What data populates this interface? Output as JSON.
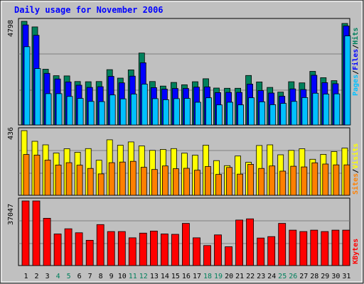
{
  "colors": {
    "background": "#ffffff",
    "frame": "#c0c0c0",
    "plot_bg": "#c0c0c0",
    "grid": "#808080",
    "title": "#0000ff",
    "hits": "#00805c",
    "files": "#0000ff",
    "pages": "#00c0ff",
    "visits": "#ffff00",
    "sites": "#ff8000",
    "kbytes": "#ff0000",
    "weekday_text": "#000000",
    "weekend_text": "#00805c"
  },
  "chart_data": [
    {
      "type": "bar",
      "title": "Daily usage for November 2006",
      "legend": [
        "Pages",
        "Files",
        "Hits"
      ],
      "y_max_label": "4798",
      "ylim": [
        0,
        4798
      ],
      "grid": true,
      "categories": [
        "1",
        "2",
        "3",
        "4",
        "5",
        "6",
        "7",
        "8",
        "9",
        "10",
        "11",
        "12",
        "13",
        "14",
        "15",
        "16",
        "17",
        "18",
        "19",
        "20",
        "21",
        "22",
        "23",
        "24",
        "25",
        "26",
        "27",
        "28",
        "29",
        "30",
        "31"
      ],
      "weekend_days": [
        "4",
        "5",
        "11",
        "12",
        "18",
        "19",
        "25",
        "26"
      ],
      "series": [
        {
          "name": "Hits",
          "values": [
            4850,
            4540,
            2580,
            2280,
            2270,
            2010,
            2000,
            2010,
            2560,
            2170,
            2550,
            3330,
            2010,
            1800,
            1970,
            1860,
            2000,
            2140,
            1710,
            1700,
            1700,
            2290,
            1990,
            1740,
            1520,
            2000,
            1950,
            2480,
            2190,
            2050,
            4700
          ]
        },
        {
          "name": "Files",
          "values": [
            4630,
            4150,
            2390,
            2130,
            1990,
            1840,
            1740,
            1770,
            2250,
            1950,
            2260,
            2880,
            1730,
            1660,
            1690,
            1690,
            1750,
            1760,
            1500,
            1510,
            1510,
            1890,
            1590,
            1480,
            1330,
            1670,
            1640,
            2300,
            1960,
            1910,
            4580
          ]
        },
        {
          "name": "Pages",
          "values": [
            3620,
            2610,
            1450,
            1450,
            1320,
            1230,
            1090,
            1080,
            1390,
            1210,
            1430,
            1890,
            1220,
            1170,
            1220,
            1230,
            1050,
            1260,
            930,
            1050,
            930,
            1260,
            1070,
            940,
            1000,
            1090,
            1270,
            1470,
            1430,
            1440,
            4120
          ]
        }
      ]
    },
    {
      "type": "bar",
      "legend": [
        "Sites",
        "Visits"
      ],
      "y_max_label": "436",
      "ylim": [
        0,
        436
      ],
      "grid": true,
      "categories": [
        "1",
        "2",
        "3",
        "4",
        "5",
        "6",
        "7",
        "8",
        "9",
        "10",
        "11",
        "12",
        "13",
        "14",
        "15",
        "16",
        "17",
        "18",
        "19",
        "20",
        "21",
        "22",
        "23",
        "24",
        "25",
        "26",
        "27",
        "28",
        "29",
        "30",
        "31"
      ],
      "series": [
        {
          "name": "Visits",
          "values": [
            440,
            364,
            340,
            285,
            314,
            290,
            315,
            236,
            374,
            338,
            360,
            333,
            303,
            309,
            315,
            284,
            270,
            338,
            234,
            200,
            265,
            223,
            336,
            340,
            273,
            303,
            314,
            243,
            276,
            295,
            318
          ]
        },
        {
          "name": "Sites",
          "values": [
            275,
            271,
            237,
            204,
            220,
            203,
            181,
            144,
            220,
            224,
            229,
            189,
            174,
            198,
            179,
            182,
            169,
            194,
            141,
            188,
            143,
            209,
            181,
            198,
            163,
            196,
            191,
            219,
            211,
            205,
            205
          ]
        }
      ]
    },
    {
      "type": "bar",
      "legend": [
        "KBytes"
      ],
      "y_max_label": "37047",
      "ylim": [
        0,
        37047
      ],
      "grid": true,
      "categories": [
        "1",
        "2",
        "3",
        "4",
        "5",
        "6",
        "7",
        "8",
        "9",
        "10",
        "11",
        "12",
        "13",
        "14",
        "15",
        "16",
        "17",
        "18",
        "19",
        "20",
        "21",
        "22",
        "23",
        "24",
        "25",
        "26",
        "27",
        "28",
        "29",
        "30",
        "31"
      ],
      "series": [
        {
          "name": "KBytes",
          "values": [
            37100,
            37047,
            27100,
            18100,
            21100,
            18800,
            14500,
            23500,
            19500,
            19500,
            15900,
            18600,
            19800,
            18100,
            17900,
            24200,
            15900,
            11500,
            17600,
            10800,
            26100,
            26800,
            15800,
            16600,
            24200,
            20300,
            19500,
            20300,
            19500,
            20300,
            20300
          ]
        }
      ]
    }
  ]
}
